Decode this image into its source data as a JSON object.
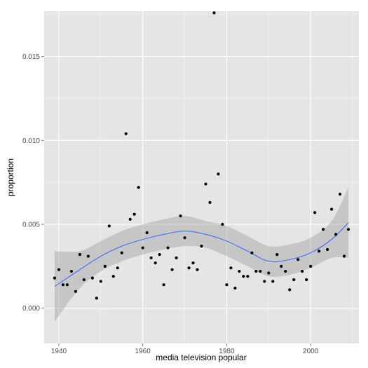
{
  "chart_data": {
    "type": "scatter",
    "xlabel": "media television popular",
    "ylabel": "proportion",
    "xlim": [
      1936.5,
      2011.5
    ],
    "ylim": [
      -0.0021,
      0.0177
    ],
    "x_ticks": [
      1940,
      1960,
      1980,
      2000
    ],
    "x_tick_labels": [
      "1940",
      "1960",
      "1980",
      "2000"
    ],
    "y_ticks": [
      0.0,
      0.005,
      0.01,
      0.015
    ],
    "y_tick_labels": [
      "0.000",
      "0.005",
      "0.010",
      "0.015"
    ],
    "grid": true,
    "colors": {
      "panel_background": "#e5e5e5",
      "gridline": "#ffffff",
      "points": "#000000",
      "smooth_line": "#3366ff",
      "confidence_band": "#999999"
    },
    "points": [
      {
        "x": 1939,
        "y": 0.0018
      },
      {
        "x": 1940,
        "y": 0.0023
      },
      {
        "x": 1941,
        "y": 0.0014
      },
      {
        "x": 1942,
        "y": 0.0014
      },
      {
        "x": 1943,
        "y": 0.0022
      },
      {
        "x": 1944,
        "y": 0.001
      },
      {
        "x": 1945,
        "y": 0.0032
      },
      {
        "x": 1946,
        "y": 0.0017
      },
      {
        "x": 1947,
        "y": 0.0031
      },
      {
        "x": 1948,
        "y": 0.0018
      },
      {
        "x": 1949,
        "y": 0.0006
      },
      {
        "x": 1950,
        "y": 0.0016
      },
      {
        "x": 1951,
        "y": 0.0025
      },
      {
        "x": 1952,
        "y": 0.0049
      },
      {
        "x": 1953,
        "y": 0.0019
      },
      {
        "x": 1954,
        "y": 0.0024
      },
      {
        "x": 1955,
        "y": 0.0033
      },
      {
        "x": 1956,
        "y": 0.0104
      },
      {
        "x": 1957,
        "y": 0.0053
      },
      {
        "x": 1958,
        "y": 0.0056
      },
      {
        "x": 1959,
        "y": 0.0072
      },
      {
        "x": 1960,
        "y": 0.0036
      },
      {
        "x": 1961,
        "y": 0.0045
      },
      {
        "x": 1962,
        "y": 0.003
      },
      {
        "x": 1963,
        "y": 0.0027
      },
      {
        "x": 1964,
        "y": 0.0032
      },
      {
        "x": 1965,
        "y": 0.0014
      },
      {
        "x": 1966,
        "y": 0.0036
      },
      {
        "x": 1967,
        "y": 0.0023
      },
      {
        "x": 1968,
        "y": 0.003
      },
      {
        "x": 1969,
        "y": 0.0055
      },
      {
        "x": 1970,
        "y": 0.0042
      },
      {
        "x": 1971,
        "y": 0.0024
      },
      {
        "x": 1972,
        "y": 0.0027
      },
      {
        "x": 1973,
        "y": 0.0023
      },
      {
        "x": 1974,
        "y": 0.0037
      },
      {
        "x": 1975,
        "y": 0.0074
      },
      {
        "x": 1976,
        "y": 0.0063
      },
      {
        "x": 1977,
        "y": 0.0176
      },
      {
        "x": 1978,
        "y": 0.008
      },
      {
        "x": 1979,
        "y": 0.005
      },
      {
        "x": 1980,
        "y": 0.0014
      },
      {
        "x": 1981,
        "y": 0.0024
      },
      {
        "x": 1982,
        "y": 0.0012
      },
      {
        "x": 1983,
        "y": 0.0022
      },
      {
        "x": 1984,
        "y": 0.0019
      },
      {
        "x": 1985,
        "y": 0.0019
      },
      {
        "x": 1986,
        "y": 0.0033
      },
      {
        "x": 1987,
        "y": 0.0022
      },
      {
        "x": 1988,
        "y": 0.0022
      },
      {
        "x": 1989,
        "y": 0.0016
      },
      {
        "x": 1990,
        "y": 0.0021
      },
      {
        "x": 1991,
        "y": 0.0016
      },
      {
        "x": 1992,
        "y": 0.0032
      },
      {
        "x": 1993,
        "y": 0.0025
      },
      {
        "x": 1994,
        "y": 0.0022
      },
      {
        "x": 1995,
        "y": 0.0011
      },
      {
        "x": 1996,
        "y": 0.0017
      },
      {
        "x": 1997,
        "y": 0.0029
      },
      {
        "x": 1998,
        "y": 0.0022
      },
      {
        "x": 1999,
        "y": 0.0017
      },
      {
        "x": 2000,
        "y": 0.0025
      },
      {
        "x": 2001,
        "y": 0.0057
      },
      {
        "x": 2002,
        "y": 0.0034
      },
      {
        "x": 2003,
        "y": 0.0047
      },
      {
        "x": 2004,
        "y": 0.0035
      },
      {
        "x": 2005,
        "y": 0.0059
      },
      {
        "x": 2006,
        "y": 0.0044
      },
      {
        "x": 2007,
        "y": 0.0068
      },
      {
        "x": 2008,
        "y": 0.0031
      },
      {
        "x": 2009,
        "y": 0.0047
      }
    ],
    "smooth": {
      "method": "loess",
      "x": [
        1939,
        1945,
        1950,
        1955,
        1960,
        1965,
        1970,
        1975,
        1980,
        1985,
        1990,
        1995,
        2000,
        2005,
        2009
      ],
      "y": [
        0.0013,
        0.0023,
        0.0031,
        0.0037,
        0.0041,
        0.0044,
        0.0046,
        0.0044,
        0.004,
        0.0034,
        0.0028,
        0.0029,
        0.0033,
        0.0041,
        0.0051
      ],
      "lower": [
        -0.0008,
        0.0012,
        0.0022,
        0.0028,
        0.0032,
        0.0035,
        0.0037,
        0.0036,
        0.0031,
        0.0025,
        0.0019,
        0.002,
        0.0024,
        0.003,
        0.003
      ],
      "upper": [
        0.0034,
        0.0034,
        0.004,
        0.0046,
        0.005,
        0.0053,
        0.0055,
        0.0052,
        0.0049,
        0.0043,
        0.0037,
        0.0038,
        0.0042,
        0.0052,
        0.0072
      ]
    }
  }
}
